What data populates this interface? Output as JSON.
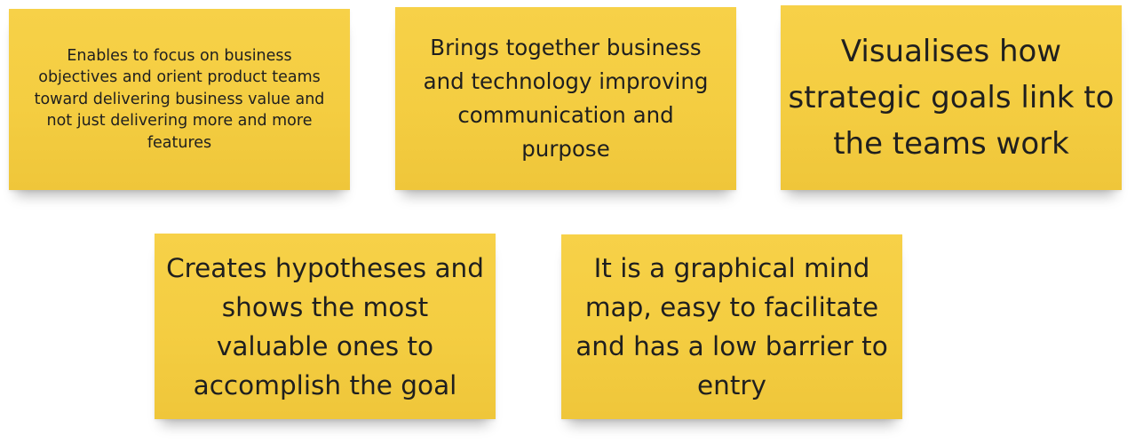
{
  "notes": [
    {
      "text": "Enables to focus on business objectives and orient product teams toward delivering business value and not just delivering more and more features",
      "color": "#f4cd41"
    },
    {
      "text": "Brings together business and technology improving communication and purpose",
      "color": "#f4cd41"
    },
    {
      "text": "Visualises how strategic goals link to the teams work",
      "color": "#f4cd41"
    },
    {
      "text": "Creates hypotheses and shows the most valuable ones to accomplish the goal",
      "color": "#f4cd41"
    },
    {
      "text": "It is a graphical mind map, easy to facilitate and has a low barrier to entry",
      "color": "#f4cd41"
    }
  ]
}
